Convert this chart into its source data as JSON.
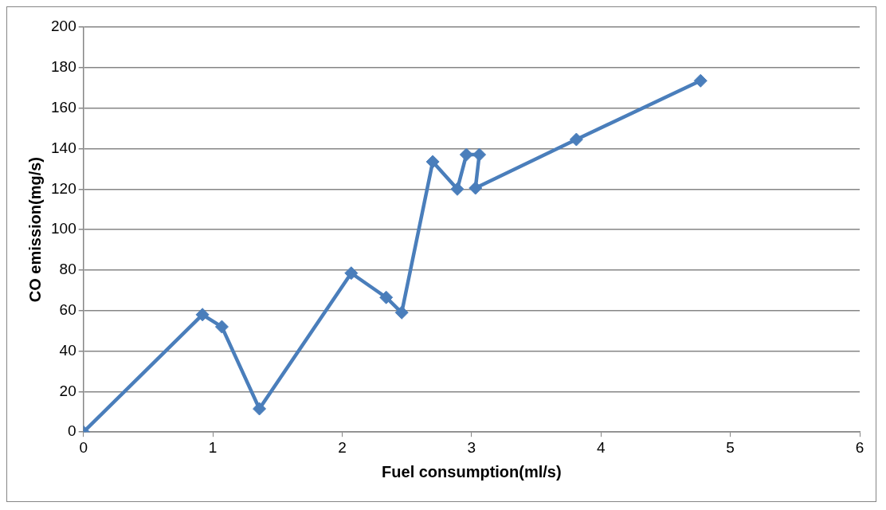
{
  "chart_data": {
    "type": "line",
    "xlabel": "Fuel consumption(ml/s)",
    "ylabel": "CO emission(mg/s)",
    "x": [
      0,
      0.92,
      1.07,
      1.36,
      2.07,
      2.34,
      2.46,
      2.7,
      2.89,
      2.96,
      3.06,
      3.03,
      3.81,
      4.77
    ],
    "series": [
      {
        "color": "#4a7ebb",
        "values": [
          0,
          58,
          52,
          11.5,
          78.5,
          66.5,
          59,
          133.5,
          120,
          137,
          137,
          120.5,
          144.5,
          173.5
        ]
      }
    ],
    "xlim": [
      0,
      6
    ],
    "xticks": [
      0,
      1,
      2,
      3,
      4,
      5,
      6
    ],
    "ylim": [
      0,
      200
    ],
    "yticks": [
      0,
      20,
      40,
      60,
      80,
      100,
      120,
      140,
      160,
      180,
      200
    ],
    "grid": "y",
    "legend": false,
    "marker": "diamond",
    "line_style": "solid"
  }
}
